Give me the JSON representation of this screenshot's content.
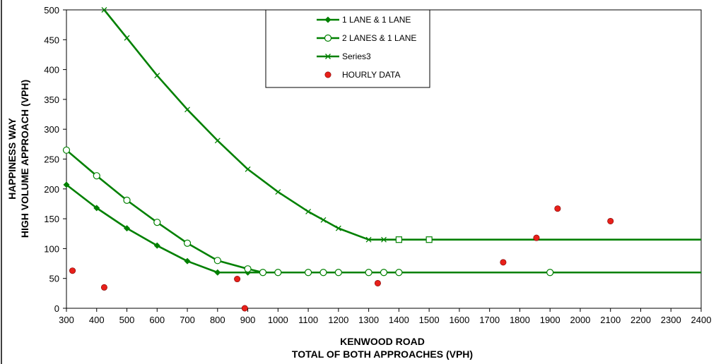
{
  "chart_data": {
    "type": "line",
    "xlabel_line1": "KENWOOD ROAD",
    "xlabel_line2": "TOTAL OF BOTH APPROACHES (VPH)",
    "ylabel_line1": "HAPPINESS WAY",
    "ylabel_line2": "HIGH VOLUME APPROACH (VPH)",
    "xlim": [
      300,
      2400
    ],
    "ylim": [
      0,
      500
    ],
    "xticks": [
      300,
      400,
      500,
      600,
      700,
      800,
      900,
      1000,
      1100,
      1200,
      1300,
      1400,
      1500,
      1600,
      1700,
      1800,
      1900,
      2000,
      2100,
      2200,
      2300,
      2400
    ],
    "yticks": [
      0,
      50,
      100,
      150,
      200,
      250,
      300,
      350,
      400,
      450,
      500
    ],
    "grid": "none",
    "legend_placement": "top-center",
    "series": [
      {
        "name": "1 LANE & 1 LANE",
        "marker": "diamond",
        "color": "#008000",
        "x": [
          300,
          400,
          500,
          600,
          700,
          800,
          900,
          950,
          1000,
          1100,
          1150,
          1200,
          1300,
          1350,
          1400,
          2400
        ],
        "y": [
          207,
          168,
          134,
          105,
          79,
          60,
          60,
          60,
          60,
          60,
          60,
          60,
          60,
          60,
          60,
          60
        ]
      },
      {
        "name": "2 LANES & 1 LANE",
        "marker": "open-circle",
        "color": "#008000",
        "x": [
          300,
          400,
          500,
          600,
          700,
          800,
          900,
          950,
          1000,
          1100,
          1150,
          1200,
          1300,
          1350,
          1400,
          1900,
          2400
        ],
        "y": [
          265,
          222,
          181,
          144,
          109,
          80,
          66,
          60,
          60,
          60,
          60,
          60,
          60,
          60,
          60,
          60,
          60
        ]
      },
      {
        "name": "Series3",
        "marker": "x",
        "color": "#008000",
        "x": [
          425,
          500,
          600,
          700,
          800,
          900,
          1000,
          1100,
          1150,
          1200,
          1300,
          1350,
          1400,
          1500,
          2400
        ],
        "y": [
          500,
          453,
          390,
          333,
          281,
          233,
          195,
          162,
          148,
          134,
          115,
          115,
          115,
          115,
          115
        ]
      },
      {
        "name": "HOURLY DATA",
        "marker": "dot",
        "color": "#e8201a",
        "x": [
          320,
          425,
          865,
          890,
          1330,
          1745,
          1855,
          1925,
          2100
        ],
        "y": [
          63,
          35,
          49,
          0,
          42,
          77,
          118,
          167,
          146
        ]
      }
    ],
    "extra_markers": [
      {
        "marker": "open-square",
        "x": 1400,
        "y": 115
      },
      {
        "marker": "open-square",
        "x": 1500,
        "y": 115
      }
    ]
  }
}
